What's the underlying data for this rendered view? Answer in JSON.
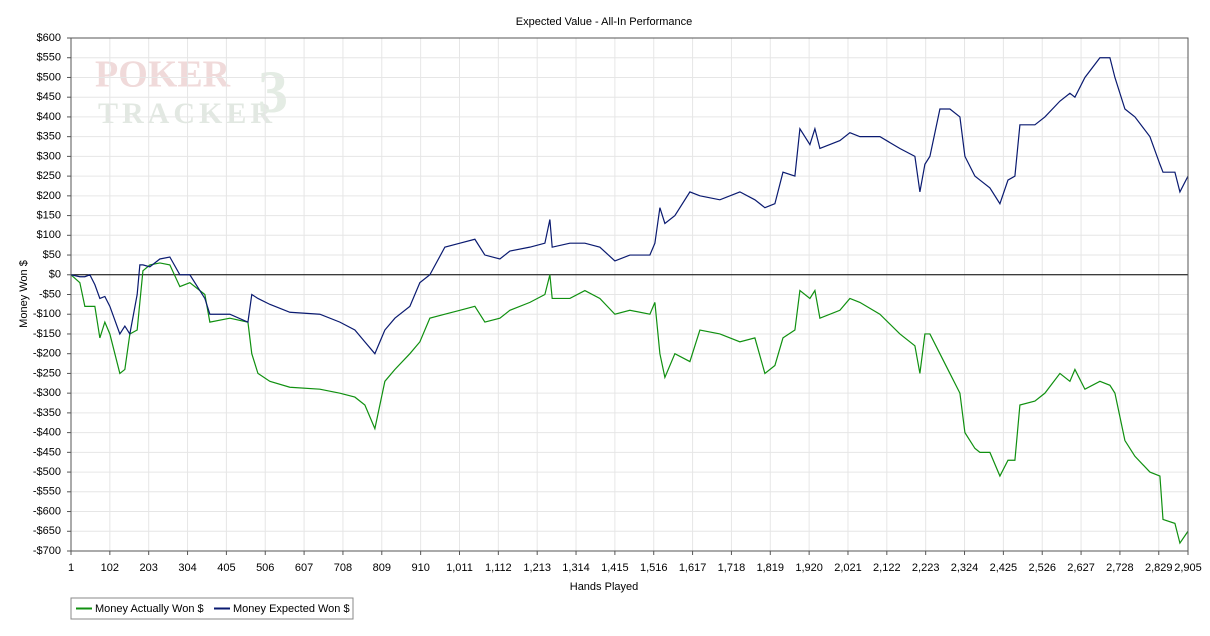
{
  "chart_data": {
    "type": "line",
    "title": "Expected Value - All-In Performance",
    "xlabel": "Hands Played",
    "ylabel": "Money Won $",
    "watermark": [
      "POKER",
      "TRACKER",
      "3"
    ],
    "grid": true,
    "legend": "bottom-left",
    "xlim": [
      1,
      2905
    ],
    "ylim": [
      -700,
      600
    ],
    "xticks": [
      1,
      102,
      203,
      304,
      405,
      506,
      607,
      708,
      809,
      910,
      {
        "value": 1011,
        "label": "1,011"
      },
      {
        "value": 1112,
        "label": "1,112"
      },
      {
        "value": 1213,
        "label": "1,213"
      },
      {
        "value": 1314,
        "label": "1,314"
      },
      {
        "value": 1415,
        "label": "1,415"
      },
      {
        "value": 1516,
        "label": "1,516"
      },
      {
        "value": 1617,
        "label": "1,617"
      },
      {
        "value": 1718,
        "label": "1,718"
      },
      {
        "value": 1819,
        "label": "1,819"
      },
      {
        "value": 1920,
        "label": "1,920"
      },
      {
        "value": 2021,
        "label": "2,021"
      },
      {
        "value": 2122,
        "label": "2,122"
      },
      {
        "value": 2223,
        "label": "2,223"
      },
      {
        "value": 2324,
        "label": "2,324"
      },
      {
        "value": 2425,
        "label": "2,425"
      },
      {
        "value": 2526,
        "label": "2,526"
      },
      {
        "value": 2627,
        "label": "2,627"
      },
      {
        "value": 2728,
        "label": "2,728"
      },
      {
        "value": 2829,
        "label": "2,829"
      },
      {
        "value": 2905,
        "label": "2,905"
      }
    ],
    "yticks": [
      {
        "value": -700,
        "label": "-$700"
      },
      {
        "value": -650,
        "label": "-$650"
      },
      {
        "value": -600,
        "label": "-$600"
      },
      {
        "value": -550,
        "label": "-$550"
      },
      {
        "value": -500,
        "label": "-$500"
      },
      {
        "value": -450,
        "label": "-$450"
      },
      {
        "value": -400,
        "label": "-$400"
      },
      {
        "value": -350,
        "label": "-$350"
      },
      {
        "value": -300,
        "label": "-$300"
      },
      {
        "value": -250,
        "label": "-$250"
      },
      {
        "value": -200,
        "label": "-$200"
      },
      {
        "value": -150,
        "label": "-$150"
      },
      {
        "value": -100,
        "label": "-$100"
      },
      {
        "value": -50,
        "label": "-$50"
      },
      {
        "value": 0,
        "label": "$0"
      },
      {
        "value": 50,
        "label": "$50"
      },
      {
        "value": 100,
        "label": "$100"
      },
      {
        "value": 150,
        "label": "$150"
      },
      {
        "value": 200,
        "label": "$200"
      },
      {
        "value": 250,
        "label": "$250"
      },
      {
        "value": 300,
        "label": "$300"
      },
      {
        "value": 350,
        "label": "$350"
      },
      {
        "value": 400,
        "label": "$400"
      },
      {
        "value": 450,
        "label": "$450"
      },
      {
        "value": 500,
        "label": "$500"
      },
      {
        "value": 550,
        "label": "$550"
      },
      {
        "value": 600,
        "label": "$600"
      }
    ],
    "x": [
      1,
      24,
      37,
      50,
      63,
      76,
      89,
      102,
      128,
      141,
      154,
      173,
      180,
      188,
      206,
      232,
      258,
      284,
      310,
      349,
      362,
      414,
      461,
      471,
      487,
      518,
      570,
      648,
      700,
      739,
      765,
      791,
      817,
      843,
      882,
      908,
      934,
      973,
      1012,
      1051,
      1077,
      1116,
      1142,
      1194,
      1233,
      1246,
      1252,
      1298,
      1337,
      1376,
      1415,
      1454,
      1506,
      1519,
      1532,
      1545,
      1571,
      1610,
      1636,
      1688,
      1740,
      1779,
      1805,
      1831,
      1852,
      1883,
      1896,
      1922,
      1935,
      1948,
      2000,
      2026,
      2052,
      2104,
      2156,
      2195,
      2208,
      2221,
      2234,
      2260,
      2286,
      2312,
      2325,
      2351,
      2364,
      2390,
      2416,
      2437,
      2455,
      2468,
      2507,
      2533,
      2572,
      2598,
      2611,
      2637,
      2676,
      2702,
      2715,
      2741,
      2767,
      2806,
      2832,
      2840,
      2871,
      2884,
      2905
    ],
    "series": [
      {
        "name": "Money Actually Won $",
        "color": "#109010",
        "values": [
          0,
          -20,
          -80,
          -80,
          -80,
          -160,
          -120,
          -150,
          -250,
          -240,
          -150,
          -140,
          -70,
          10,
          25,
          30,
          25,
          -30,
          -20,
          -50,
          -120,
          -110,
          -120,
          -200,
          -250,
          -270,
          -285,
          -290,
          -300,
          -310,
          -330,
          -390,
          -270,
          -240,
          -200,
          -170,
          -110,
          -100,
          -90,
          -80,
          -120,
          -110,
          -90,
          -70,
          -50,
          0,
          -60,
          -60,
          -40,
          -60,
          -100,
          -90,
          -100,
          -70,
          -200,
          -260,
          -200,
          -220,
          -140,
          -150,
          -170,
          -160,
          -250,
          -230,
          -160,
          -140,
          -40,
          -60,
          -40,
          -110,
          -90,
          -60,
          -70,
          -100,
          -150,
          -180,
          -250,
          -150,
          -150,
          -200,
          -250,
          -300,
          -400,
          -440,
          -450,
          -450,
          -510,
          -470,
          -470,
          -330,
          -320,
          -300,
          -250,
          -270,
          -240,
          -290,
          -270,
          -280,
          -300,
          -420,
          -460,
          -500,
          -510,
          -620,
          -630,
          -680,
          -650
        ]
      },
      {
        "name": "Money Expected Won $",
        "color": "#0a1a70",
        "values": [
          0,
          -5,
          -5,
          0,
          -25,
          -60,
          -55,
          -80,
          -150,
          -130,
          -150,
          -50,
          25,
          25,
          20,
          40,
          45,
          0,
          0,
          -60,
          -100,
          -100,
          -120,
          -50,
          -60,
          -75,
          -95,
          -100,
          -120,
          -140,
          -170,
          -200,
          -140,
          -110,
          -80,
          -20,
          0,
          70,
          80,
          90,
          50,
          40,
          60,
          70,
          80,
          140,
          70,
          80,
          80,
          70,
          35,
          50,
          50,
          80,
          170,
          130,
          150,
          210,
          200,
          190,
          210,
          190,
          170,
          180,
          260,
          250,
          370,
          330,
          370,
          320,
          340,
          360,
          350,
          350,
          320,
          300,
          210,
          280,
          300,
          420,
          420,
          400,
          300,
          250,
          240,
          220,
          180,
          240,
          250,
          380,
          380,
          400,
          440,
          460,
          450,
          500,
          550,
          550,
          500,
          420,
          400,
          350,
          280,
          260,
          260,
          210,
          250
        ]
      }
    ]
  }
}
